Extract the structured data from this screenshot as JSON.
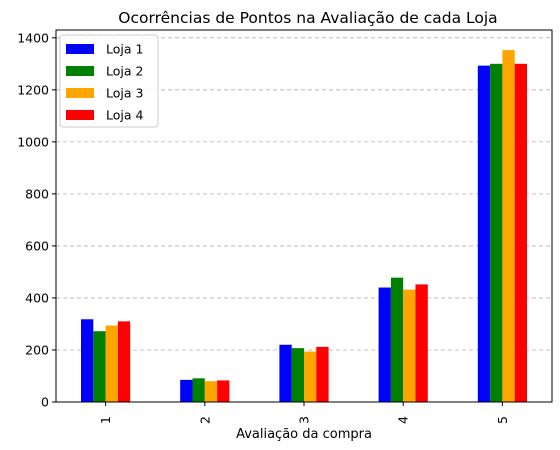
{
  "chart_data": {
    "type": "bar",
    "title": "Ocorrências de Pontos na Avaliação de cada Loja",
    "xlabel": "Avaliação da compra",
    "ylabel": "",
    "categories": [
      "1",
      "2",
      "3",
      "4",
      "5"
    ],
    "ylim": [
      0,
      1430
    ],
    "yticks": [
      "0",
      "200",
      "400",
      "600",
      "800",
      "1000",
      "1200",
      "1400"
    ],
    "grid": "horizontal dashed",
    "legend_position": "top-left",
    "series": [
      {
        "name": "Loja 1",
        "color": "#0000ff",
        "values": [
          318,
          85,
          220,
          440,
          1293
        ]
      },
      {
        "name": "Loja 2",
        "color": "#008000",
        "values": [
          272,
          91,
          207,
          478,
          1300
        ]
      },
      {
        "name": "Loja 3",
        "color": "#ffa500",
        "values": [
          294,
          80,
          194,
          432,
          1353
        ]
      },
      {
        "name": "Loja 4",
        "color": "#ff0000",
        "values": [
          310,
          83,
          212,
          452,
          1300
        ]
      }
    ]
  }
}
